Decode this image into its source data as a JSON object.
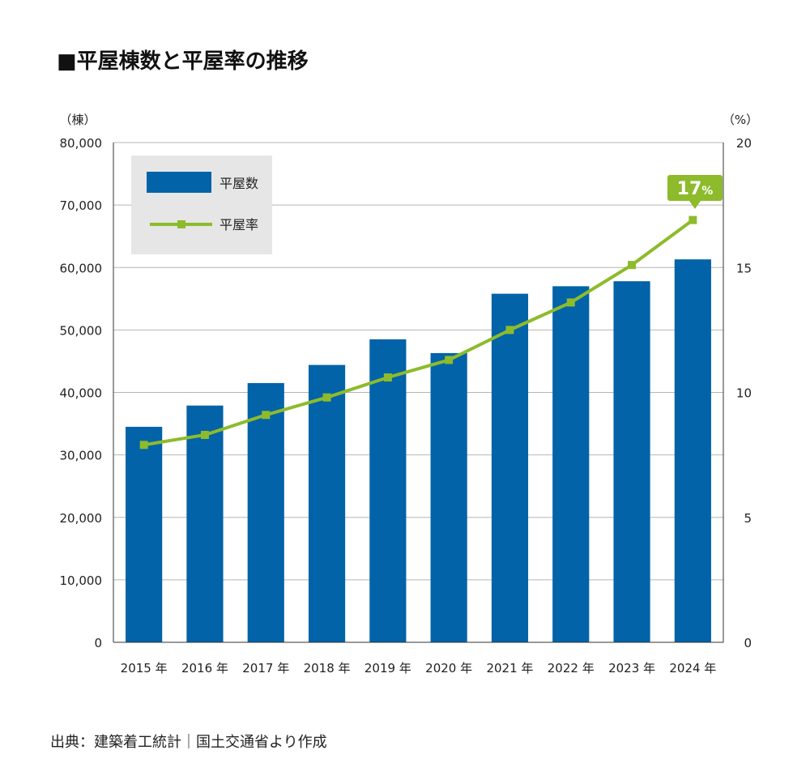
{
  "title": "■平屋棟数と平屋率の推移",
  "source": "出典：建築着工統計｜国土交通省より作成",
  "colors": {
    "bar": "#0263a8",
    "line": "#8dbb2b",
    "grid": "#b5b5b5",
    "legend_bg": "#e6e6e6",
    "callout": "#8dbb2b"
  },
  "chart_data": {
    "type": "bar",
    "categories": [
      "2015 年",
      "2016 年",
      "2017 年",
      "2018 年",
      "2019 年",
      "2020 年",
      "2021 年",
      "2022 年",
      "2023 年",
      "2024 年"
    ],
    "series": [
      {
        "name": "平屋数",
        "type": "bar",
        "axis": "left",
        "values": [
          34500,
          37900,
          41500,
          44400,
          48500,
          46300,
          55800,
          57000,
          57800,
          61300
        ]
      },
      {
        "name": "平屋率",
        "type": "line",
        "axis": "right",
        "values": [
          7.9,
          8.3,
          9.1,
          9.8,
          10.6,
          11.3,
          12.5,
          13.6,
          15.1,
          16.9
        ]
      }
    ],
    "y_left": {
      "label": "（棟）",
      "min": 0,
      "max": 80000,
      "ticks": [
        "0",
        "10,000",
        "20,000",
        "30,000",
        "40,000",
        "50,000",
        "60,000",
        "70,000",
        "80,000"
      ]
    },
    "y_right": {
      "label": "（%）",
      "min": 0,
      "max": 20,
      "ticks": [
        "0",
        "5",
        "10",
        "15",
        "20"
      ]
    },
    "callout": {
      "text": "17",
      "unit": "%"
    },
    "legend": {
      "position": "top-left"
    },
    "grid": true
  }
}
